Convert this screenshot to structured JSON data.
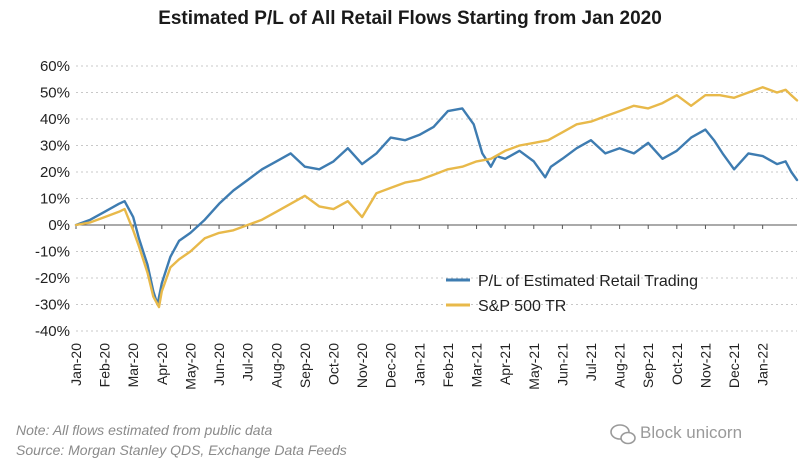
{
  "chart_data": {
    "type": "line",
    "title": "Estimated P/L of All Retail Flows Starting from Jan 2020",
    "ylabel": "",
    "xlabel": "",
    "ylim": [
      -40,
      60
    ],
    "yticks": [
      -40,
      -30,
      -20,
      -10,
      0,
      10,
      20,
      30,
      40,
      50,
      60
    ],
    "ytick_labels": [
      "-40%",
      "-30%",
      "-20%",
      "-10%",
      "0%",
      "10%",
      "20%",
      "30%",
      "40%",
      "50%",
      "60%"
    ],
    "xlim": [
      0,
      25.2
    ],
    "categories": [
      "Jan-20",
      "Feb-20",
      "Mar-20",
      "Apr-20",
      "May-20",
      "Jun-20",
      "Jul-20",
      "Aug-20",
      "Sep-20",
      "Oct-20",
      "Nov-20",
      "Dec-20",
      "Jan-21",
      "Feb-21",
      "Mar-21",
      "Apr-21",
      "May-21",
      "Jun-21",
      "Jul-21",
      "Aug-21",
      "Sep-21",
      "Oct-21",
      "Nov-21",
      "Dec-21",
      "Jan-22"
    ],
    "grid": true,
    "legend_position": "lower-right",
    "series": [
      {
        "name": "P/L of Estimated Retail Trading",
        "color": "#3e7cb1",
        "x": [
          0,
          0.5,
          1,
          1.5,
          1.7,
          2,
          2.2,
          2.5,
          2.7,
          2.85,
          3,
          3.3,
          3.6,
          4,
          4.5,
          5,
          5.5,
          6,
          6.5,
          7,
          7.5,
          8,
          8.5,
          9,
          9.5,
          10,
          10.5,
          11,
          11.5,
          12,
          12.5,
          13,
          13.5,
          13.9,
          14.2,
          14.5,
          14.7,
          15,
          15.5,
          16,
          16.4,
          16.6,
          17,
          17.5,
          18,
          18.5,
          19,
          19.5,
          20,
          20.5,
          21,
          21.5,
          22,
          22.3,
          22.6,
          23,
          23.5,
          24,
          24.5,
          24.8,
          25,
          25.2
        ],
        "y": [
          0,
          2,
          5,
          8,
          9,
          3,
          -5,
          -15,
          -25,
          -30,
          -22,
          -12,
          -6,
          -3,
          2,
          8,
          13,
          17,
          21,
          24,
          27,
          22,
          21,
          24,
          29,
          23,
          27,
          33,
          32,
          34,
          37,
          43,
          44,
          38,
          27,
          22,
          26,
          25,
          28,
          24,
          18,
          22,
          25,
          29,
          32,
          27,
          29,
          27,
          31,
          25,
          28,
          33,
          36,
          32,
          27,
          21,
          27,
          26,
          23,
          24,
          20,
          17
        ]
      },
      {
        "name": "S&P 500 TR",
        "color": "#e8b94a",
        "x": [
          0,
          0.5,
          1,
          1.5,
          1.7,
          2,
          2.2,
          2.5,
          2.7,
          2.9,
          3,
          3.3,
          3.6,
          4,
          4.5,
          5,
          5.5,
          6,
          6.5,
          7,
          7.5,
          8,
          8.5,
          9,
          9.5,
          10,
          10.5,
          11,
          11.5,
          12,
          12.5,
          13,
          13.5,
          14,
          14.5,
          15,
          15.5,
          16,
          16.5,
          17,
          17.5,
          18,
          18.5,
          19,
          19.5,
          20,
          20.5,
          21,
          21.5,
          22,
          22.5,
          23,
          23.5,
          24,
          24.5,
          24.8,
          25,
          25.2
        ],
        "y": [
          0,
          1,
          3,
          5,
          6,
          -2,
          -8,
          -18,
          -27,
          -31,
          -25,
          -16,
          -13,
          -10,
          -5,
          -3,
          -2,
          0,
          2,
          5,
          8,
          11,
          7,
          6,
          9,
          3,
          12,
          14,
          16,
          17,
          19,
          21,
          22,
          24,
          25,
          28,
          30,
          31,
          32,
          35,
          38,
          39,
          41,
          43,
          45,
          44,
          46,
          49,
          45,
          49,
          49,
          48,
          50,
          52,
          50,
          51,
          49,
          47
        ]
      }
    ]
  },
  "notes": {
    "line1": "Note:  All flows estimated from public data",
    "line2": "Source: Morgan Stanley QDS, Exchange Data Feeds"
  },
  "watermark": {
    "text": "Block unicorn"
  },
  "colors": {
    "retail": "#3e7cb1",
    "sp500": "#e8b94a",
    "grid": "#c8c8c8"
  }
}
